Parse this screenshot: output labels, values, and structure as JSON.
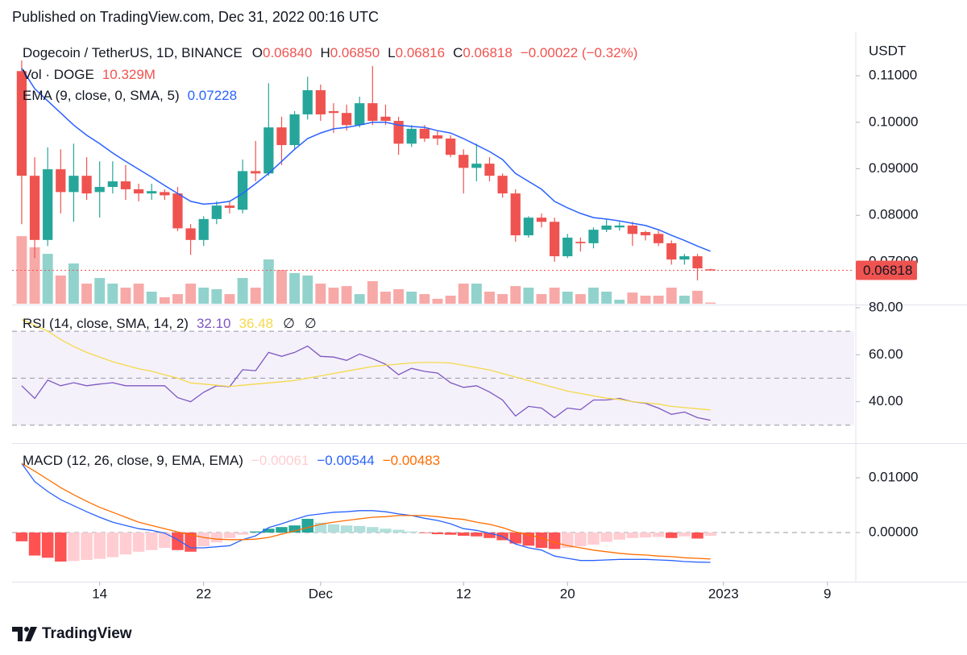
{
  "header": "Published on TradingView.com, Dec 31, 2022 00:16 UTC",
  "footer": "TradingView",
  "chart_data": [
    {
      "type": "candlestick",
      "title": "Dogecoin / TetherUS, 1D, BINANCE",
      "currency": "USDT",
      "ohlc_legend": [
        {
          "key": "O",
          "value": "0.06840"
        },
        {
          "key": "H",
          "value": "0.06850"
        },
        {
          "key": "L",
          "value": "0.06816"
        },
        {
          "key": "C",
          "value": "0.06818"
        }
      ],
      "change": "−0.00022 (−0.32%)",
      "ylim": [
        0.06099,
        0.11936
      ],
      "yticks": [
        {
          "value": 0.07,
          "label": "0.07000"
        },
        {
          "value": 0.08,
          "label": "0.08000"
        },
        {
          "value": 0.09,
          "label": "0.09000"
        },
        {
          "value": 0.1,
          "label": "0.10000"
        },
        {
          "value": 0.11,
          "label": "0.11000"
        }
      ],
      "up_color": "#26a69a",
      "down_color": "#ef5350",
      "open": [
        0.111,
        0.0885,
        0.0747,
        0.0899,
        0.085,
        0.0885,
        0.085,
        0.0861,
        0.0873,
        0.0856,
        0.0847,
        0.085,
        0.0847,
        0.0772,
        0.0747,
        0.0792,
        0.0821,
        0.0812,
        0.0895,
        0.089,
        0.0989,
        0.0951,
        0.1017,
        0.1069,
        0.1024,
        0.102,
        0.0994,
        0.1041,
        0.1012,
        0.1003,
        0.0954,
        0.0986,
        0.0972,
        0.0965,
        0.093,
        0.0902,
        0.0911,
        0.0885,
        0.0847,
        0.0757,
        0.0795,
        0.0786,
        0.0712,
        0.0743,
        0.074,
        0.0769,
        0.0774,
        0.0778,
        0.0764,
        0.076,
        0.074,
        0.0705,
        0.0712,
        0.0684
      ],
      "high": [
        0.1133,
        0.0925,
        0.0946,
        0.0942,
        0.0954,
        0.0925,
        0.0916,
        0.0916,
        0.0908,
        0.0868,
        0.0868,
        0.0856,
        0.0861,
        0.0781,
        0.0798,
        0.083,
        0.083,
        0.092,
        0.096,
        0.1084,
        0.1012,
        0.1024,
        0.1098,
        0.1081,
        0.1041,
        0.1038,
        0.1055,
        0.1121,
        0.1038,
        0.1012,
        0.0994,
        0.0994,
        0.0982,
        0.0972,
        0.0942,
        0.0954,
        0.0925,
        0.089,
        0.0856,
        0.0798,
        0.0804,
        0.0795,
        0.076,
        0.0752,
        0.0774,
        0.0792,
        0.0786,
        0.0786,
        0.0767,
        0.0767,
        0.0746,
        0.0717,
        0.0717,
        0.0685
      ],
      "low": [
        0.0781,
        0.0708,
        0.0734,
        0.0804,
        0.0786,
        0.0833,
        0.0795,
        0.0847,
        0.0833,
        0.083,
        0.0833,
        0.0833,
        0.0766,
        0.0715,
        0.0734,
        0.0781,
        0.0804,
        0.0804,
        0.0873,
        0.0885,
        0.0908,
        0.0942,
        0.1006,
        0.1003,
        0.0977,
        0.0982,
        0.0989,
        0.0994,
        0.0994,
        0.093,
        0.0947,
        0.0958,
        0.0951,
        0.0925,
        0.0847,
        0.0873,
        0.0873,
        0.0838,
        0.0743,
        0.0752,
        0.0774,
        0.07,
        0.0708,
        0.0722,
        0.0729,
        0.0764,
        0.0767,
        0.0734,
        0.0746,
        0.0734,
        0.0694,
        0.0694,
        0.066,
        0.06816
      ],
      "close": [
        0.0885,
        0.0747,
        0.0899,
        0.085,
        0.0885,
        0.0847,
        0.0861,
        0.0873,
        0.0856,
        0.0847,
        0.0852,
        0.0843,
        0.0772,
        0.0747,
        0.0792,
        0.0821,
        0.0816,
        0.0895,
        0.089,
        0.0989,
        0.0951,
        0.1017,
        0.1069,
        0.1017,
        0.102,
        0.0994,
        0.1041,
        0.1003,
        0.1003,
        0.0954,
        0.0986,
        0.0965,
        0.0965,
        0.093,
        0.0902,
        0.0911,
        0.0885,
        0.0847,
        0.0757,
        0.0795,
        0.0786,
        0.0712,
        0.0752,
        0.074,
        0.0769,
        0.0778,
        0.0778,
        0.076,
        0.0757,
        0.074,
        0.0705,
        0.0712,
        0.0686,
        0.06818
      ],
      "last_price": {
        "value": 0.06818,
        "label": "0.06818"
      },
      "volume": {
        "name": "Vol · DOGE",
        "last_label": "10.329M",
        "lim": [
          0,
          3420
        ],
        "values": [
          3020,
          2520,
          2230,
          1260,
          1800,
          900,
          1150,
          900,
          720,
          900,
          540,
          290,
          430,
          900,
          720,
          650,
          430,
          1150,
          720,
          1980,
          1510,
          1370,
          1260,
          900,
          720,
          790,
          430,
          1010,
          540,
          650,
          540,
          430,
          220,
          360,
          900,
          900,
          540,
          430,
          790,
          720,
          430,
          720,
          540,
          430,
          720,
          540,
          180,
          500,
          360,
          360,
          720,
          360,
          580,
          10.329
        ]
      },
      "series": [
        {
          "name": "EMA (9, close, 0, SMA, 5)",
          "color": "#2962ff",
          "values": [
            0.1116,
            0.1072,
            0.1046,
            0.102,
            0.0994,
            0.0972,
            0.0954,
            0.0934,
            0.0916,
            0.0899,
            0.0882,
            0.0864,
            0.0847,
            0.083,
            0.0824,
            0.0826,
            0.083,
            0.0847,
            0.0868,
            0.089,
            0.0916,
            0.0942,
            0.0965,
            0.0977,
            0.0986,
            0.0989,
            0.0994,
            0.1,
            0.1,
            0.0994,
            0.0991,
            0.0989,
            0.0982,
            0.0977,
            0.0965,
            0.0951,
            0.0937,
            0.092,
            0.089,
            0.0873,
            0.0856,
            0.083,
            0.0816,
            0.0804,
            0.0795,
            0.0792,
            0.0788,
            0.0783,
            0.0778,
            0.0769,
            0.0757,
            0.0746,
            0.0734,
            0.07228
          ]
        }
      ]
    },
    {
      "type": "line",
      "title": "RSI (14, close, SMA, 14, 2)",
      "ylim": [
        23.05,
        80.68
      ],
      "yticks": [
        {
          "value": 40,
          "label": "40.00"
        },
        {
          "value": 60,
          "label": "60.00"
        },
        {
          "value": 80,
          "label": "80.00"
        }
      ],
      "band": [
        30,
        70
      ],
      "band_color": "#ede7f6",
      "levels": [
        30,
        50,
        70
      ],
      "extra_labels": [
        "∅",
        "∅"
      ],
      "series": [
        {
          "color": "#7e57c2",
          "last_label": "32.10",
          "values": [
            46.8,
            41.4,
            49.2,
            46.8,
            48.1,
            46.8,
            47.5,
            48.1,
            46.8,
            46.8,
            46.8,
            46.8,
            41.7,
            40,
            44,
            46.8,
            46.4,
            53.6,
            53.2,
            61,
            59.3,
            61,
            63.7,
            59.3,
            59,
            57.6,
            60.3,
            58.3,
            55.9,
            51.5,
            54.2,
            52.9,
            52.2,
            48.1,
            46.1,
            46.8,
            44.1,
            40.7,
            33.9,
            38,
            37.3,
            33.2,
            37.3,
            36.6,
            40.7,
            40.7,
            41.4,
            40,
            39.3,
            37.3,
            34.6,
            35.6,
            33.2,
            32.1
          ]
        },
        {
          "color": "#f5d94a",
          "last_label": "36.48",
          "values": [
            75,
            72.5,
            70,
            66.5,
            63.5,
            61,
            59,
            57,
            55.5,
            54,
            53,
            51.5,
            50,
            48,
            47.5,
            47,
            46.5,
            47,
            47.5,
            48,
            48.5,
            49,
            50,
            51,
            52,
            53,
            54,
            55,
            55.5,
            56,
            56.5,
            56.7,
            56.7,
            56.5,
            55.5,
            54.5,
            53.5,
            52,
            50.5,
            49,
            47.5,
            46,
            44.5,
            43.5,
            42.5,
            41.5,
            41,
            40,
            39.5,
            39,
            38,
            37.5,
            37,
            36.48
          ]
        }
      ]
    },
    {
      "type": "macd",
      "title": "MACD (12, 26, close, 9, EMA, EMA)",
      "ylim": [
        -0.00897,
        0.01603
      ],
      "yticks": [
        {
          "value": 0,
          "label": "0.00000"
        },
        {
          "value": 0.01,
          "label": "0.01000"
        }
      ],
      "levels": [
        0
      ],
      "xlim": [
        -0.74,
        64.06
      ],
      "xticks": [
        {
          "value": 6,
          "label": "14"
        },
        {
          "value": 14,
          "label": "22"
        },
        {
          "value": 23,
          "label": "Dec"
        },
        {
          "value": 34,
          "label": "12"
        },
        {
          "value": 42,
          "label": "20"
        },
        {
          "value": 54,
          "label": "2023"
        },
        {
          "value": 62,
          "label": "9"
        }
      ],
      "histogram": {
        "last_label": "−0.00061",
        "label_color": "#ffcdd2",
        "colors": {
          "pos_rise": "#26a69a",
          "pos_fall": "#b2dfdb",
          "neg_fall": "#ff5252",
          "neg_rise": "#ffcdd2"
        },
        "values": [
          -0.0016,
          -0.0042,
          -0.0046,
          -0.0053,
          -0.0052,
          -0.005,
          -0.0048,
          -0.0045,
          -0.004,
          -0.0035,
          -0.0032,
          -0.0028,
          -0.0032,
          -0.0035,
          -0.0025,
          -0.0018,
          -0.001,
          -0.0004,
          0.0002,
          0.0007,
          0.001,
          0.0013,
          0.0025,
          0.0018,
          0.0015,
          0.0013,
          0.0012,
          0.001,
          0.0007,
          0.0005,
          0.0002,
          -0.0001,
          -0.0003,
          -0.0004,
          -0.0006,
          -0.0007,
          -0.001,
          -0.0014,
          -0.002,
          -0.0024,
          -0.0028,
          -0.003,
          -0.0028,
          -0.0025,
          -0.0022,
          -0.0017,
          -0.0013,
          -0.001,
          -0.0009,
          -0.0008,
          -0.001,
          -0.0007,
          -0.0011,
          -0.00061
        ]
      },
      "series": [
        {
          "color": "#2962ff",
          "last_label": "−0.00544",
          "values": [
            0.0126,
            0.0093,
            0.0075,
            0.006,
            0.0049,
            0.0038,
            0.0028,
            0.0019,
            0.0013,
            0.0007,
            0.0004,
            -0.0001,
            -0.0013,
            -0.0028,
            -0.0028,
            -0.0026,
            -0.0024,
            -0.0013,
            -0.0006,
            0.0009,
            0.0016,
            0.0024,
            0.0031,
            0.0034,
            0.0037,
            0.0038,
            0.004,
            0.004,
            0.0038,
            0.0034,
            0.0031,
            0.0026,
            0.0022,
            0.0016,
            0.0007,
            0.0004,
            -0.0001,
            -0.0007,
            -0.0021,
            -0.0028,
            -0.0032,
            -0.0043,
            -0.0047,
            -0.0051,
            -0.0051,
            -0.005,
            -0.0049,
            -0.0049,
            -0.0049,
            -0.005,
            -0.0051,
            -0.0053,
            -0.0054,
            -0.00544
          ]
        },
        {
          "color": "#ff6d00",
          "last_label": "−0.00483",
          "values": [
            0.0126,
            0.0112,
            0.0097,
            0.0082,
            0.0069,
            0.0057,
            0.0046,
            0.0037,
            0.0028,
            0.0019,
            0.0013,
            0.0007,
            0.0001,
            -0.0004,
            -0.0009,
            -0.0012,
            -0.0013,
            -0.0013,
            -0.0012,
            -0.0009,
            -0.0003,
            0.0003,
            0.0009,
            0.0015,
            0.0019,
            0.0022,
            0.0025,
            0.0028,
            0.0029,
            0.0031,
            0.0031,
            0.0031,
            0.0029,
            0.0026,
            0.0024,
            0.0019,
            0.0015,
            0.0009,
            0.0001,
            -0.0004,
            -0.001,
            -0.0018,
            -0.0024,
            -0.0028,
            -0.0032,
            -0.0035,
            -0.0038,
            -0.004,
            -0.0041,
            -0.0043,
            -0.0044,
            -0.0046,
            -0.0047,
            -0.00483
          ]
        }
      ]
    }
  ]
}
